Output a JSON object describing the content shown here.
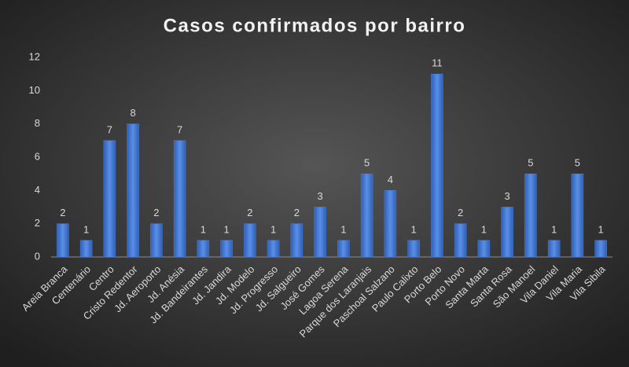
{
  "chart_data": {
    "type": "bar",
    "title": "Casos confirmados por bairro",
    "categories": [
      "Areia Branca",
      "Centenário",
      "Centro",
      "Cristo Redentor",
      "Jd. Aeroporto",
      "Jd. Anésia",
      "Jd. Bandeirantes",
      "Jd. Jandira",
      "Jd. Modelo",
      "Jd. Progresso",
      "Jd. Salgueiro",
      "José Gomes",
      "Lagoa Serena",
      "Parque dos Laranjais",
      "Paschoal Salzano",
      "Paulo Calixto",
      "Porto Belo",
      "Porto Novo",
      "Santa Marta",
      "Santa Rosa",
      "São Manoel",
      "Vila Daniel",
      "Vila Maria",
      "Vila Sibila"
    ],
    "values": [
      2,
      1,
      7,
      8,
      2,
      7,
      1,
      1,
      2,
      1,
      2,
      3,
      1,
      5,
      4,
      1,
      11,
      2,
      1,
      3,
      5,
      1,
      5,
      1
    ],
    "color": "#4a7fd9",
    "ylim": [
      0,
      12
    ],
    "yticks": [
      0,
      2,
      4,
      6,
      8,
      10,
      12
    ],
    "grid": false
  }
}
